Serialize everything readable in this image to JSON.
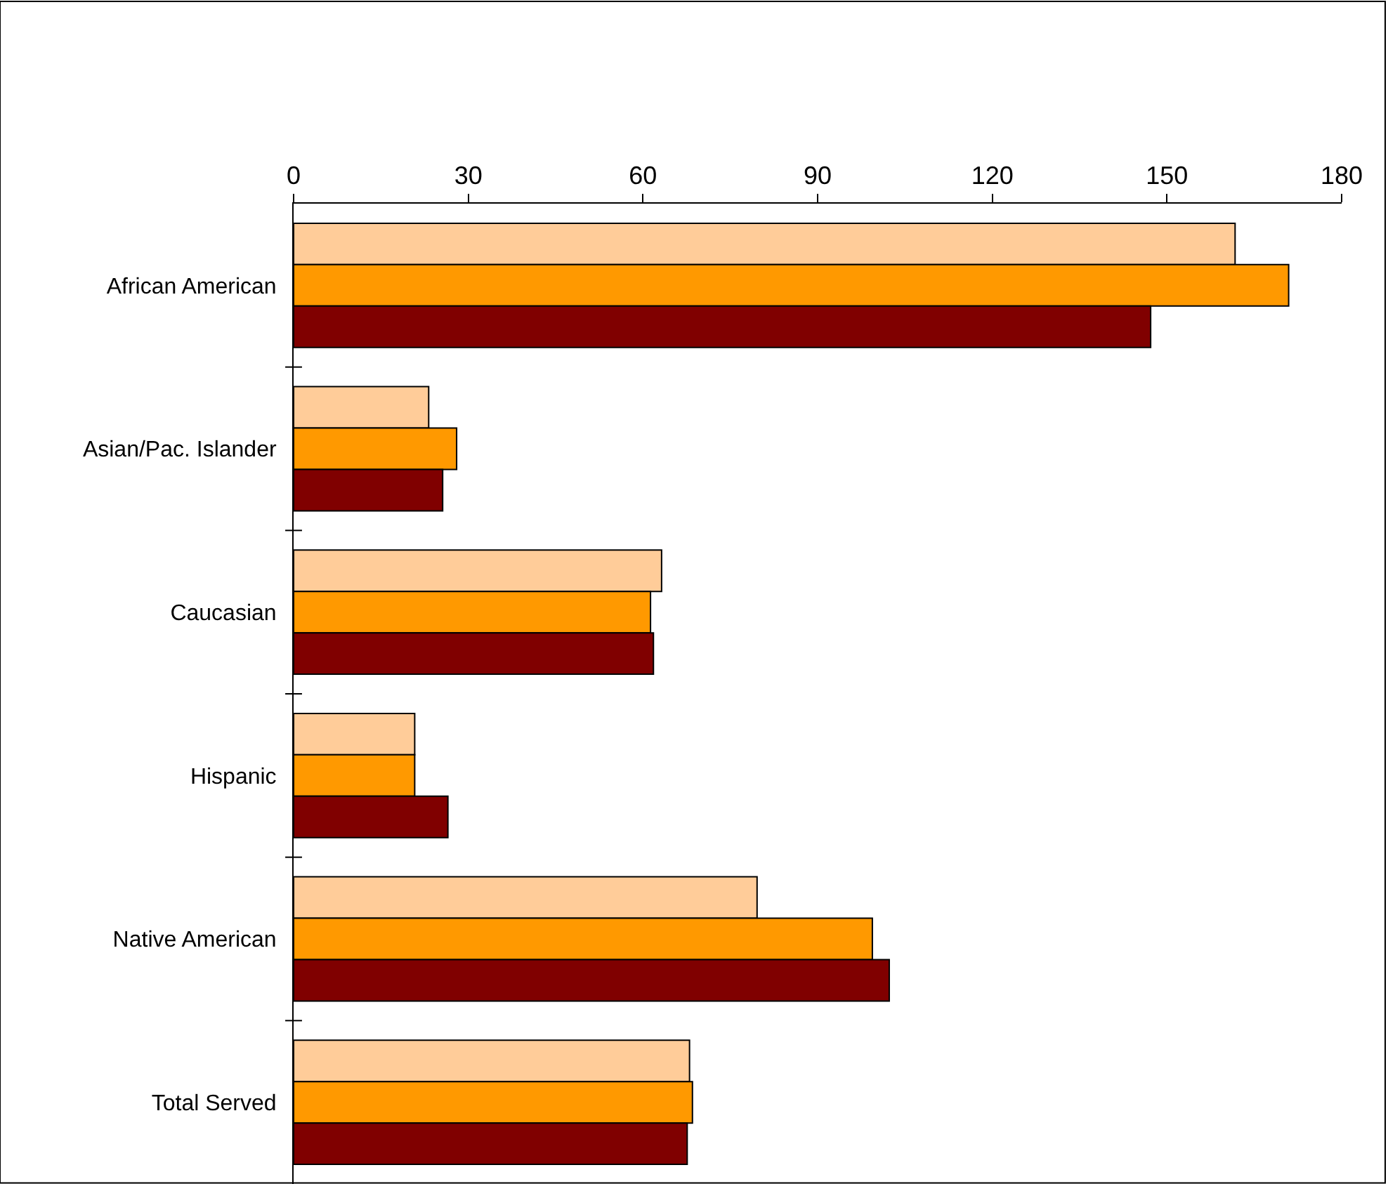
{
  "chart_data": {
    "type": "bar",
    "orientation": "horizontal",
    "categories": [
      "African American",
      "Asian/Pac. Islander",
      "Caucasian",
      "Hispanic",
      "Native American",
      "Total Served"
    ],
    "series": [
      {
        "color": "#ffcc99",
        "values": [
          161.7,
          23.2,
          63.2,
          20.8,
          79.6,
          68.0
        ]
      },
      {
        "color": "#ff9900",
        "values": [
          170.9,
          28.0,
          61.3,
          20.8,
          99.4,
          68.5
        ]
      },
      {
        "color": "#800000",
        "values": [
          147.2,
          25.6,
          61.8,
          26.5,
          102.3,
          67.6
        ]
      }
    ],
    "xlim": [
      0,
      180
    ],
    "xticks": [
      0,
      30,
      60,
      90,
      120,
      150,
      180
    ],
    "grid": false
  }
}
